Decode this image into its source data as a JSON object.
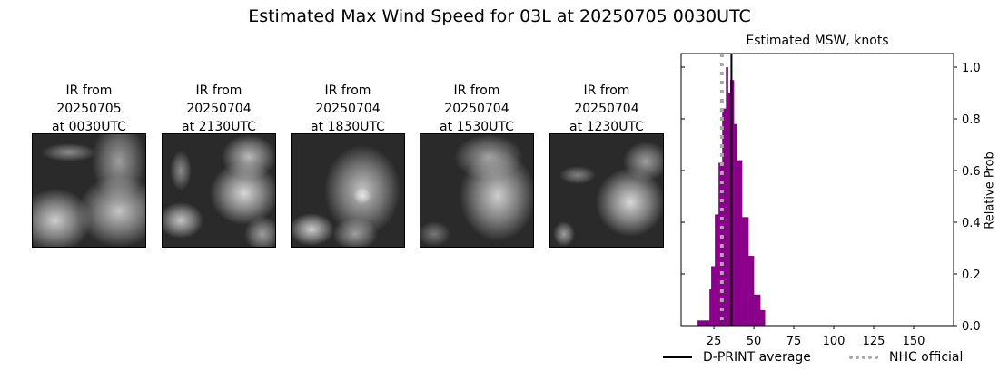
{
  "title": "Estimated Max Wind Speed for 03L at 20250705 0030UTC",
  "panels": [
    {
      "caption": "IR from\n20250705\nat 0030UTC",
      "variant": 0
    },
    {
      "caption": "IR from\n20250704\nat 2130UTC",
      "variant": 1
    },
    {
      "caption": "IR from\n20250704\nat 1830UTC",
      "variant": 2
    },
    {
      "caption": "IR from\n20250704\nat 1530UTC",
      "variant": 3
    },
    {
      "caption": "IR from\n20250704\nat 1230UTC",
      "variant": 4
    }
  ],
  "chart_data": {
    "type": "bar",
    "title": "Estimated MSW, knots",
    "xlabel": "",
    "ylabel": "Relative Prob",
    "xlim": [
      4.5,
      175
    ],
    "ylim": [
      0,
      1.05
    ],
    "xticks": [
      25,
      50,
      75,
      100,
      125,
      150
    ],
    "yticks": [
      0.0,
      0.2,
      0.4,
      0.6,
      0.8,
      1.0
    ],
    "ytick_labels": [
      "0.0",
      "0.2",
      "0.4",
      "0.6",
      "0.8",
      "1.0"
    ],
    "y_axis_side": "right",
    "grid": false,
    "bar_color": "#8b008b",
    "bins": [
      {
        "x0": 14.8,
        "x1": 22.2,
        "value": 0.02
      },
      {
        "x0": 22.2,
        "x1": 23.3,
        "value": 0.14
      },
      {
        "x0": 23.3,
        "x1": 25.6,
        "value": 0.23
      },
      {
        "x0": 25.6,
        "x1": 27.9,
        "value": 0.43
      },
      {
        "x0": 27.9,
        "x1": 30.2,
        "value": 0.63
      },
      {
        "x0": 30.2,
        "x1": 32.5,
        "value": 0.84
      },
      {
        "x0": 32.5,
        "x1": 33.8,
        "value": 1.0
      },
      {
        "x0": 33.8,
        "x1": 35.2,
        "value": 0.9
      },
      {
        "x0": 35.2,
        "x1": 37.5,
        "value": 0.95
      },
      {
        "x0": 37.5,
        "x1": 39.2,
        "value": 0.78
      },
      {
        "x0": 39.2,
        "x1": 42.6,
        "value": 0.64
      },
      {
        "x0": 42.6,
        "x1": 46.6,
        "value": 0.42
      },
      {
        "x0": 46.6,
        "x1": 50.0,
        "value": 0.27
      },
      {
        "x0": 50.0,
        "x1": 54.0,
        "value": 0.12
      },
      {
        "x0": 54.0,
        "x1": 56.9,
        "value": 0.06
      }
    ],
    "lines": [
      {
        "name": "D-PRINT average",
        "x": 36,
        "style": "solid",
        "color": "#000000"
      },
      {
        "name": "NHC official",
        "x": 30,
        "style": "dotted",
        "color": "#a9a9a9"
      }
    ],
    "legend": [
      "D-PRINT average",
      "NHC official"
    ],
    "legend_position": "bottom"
  }
}
